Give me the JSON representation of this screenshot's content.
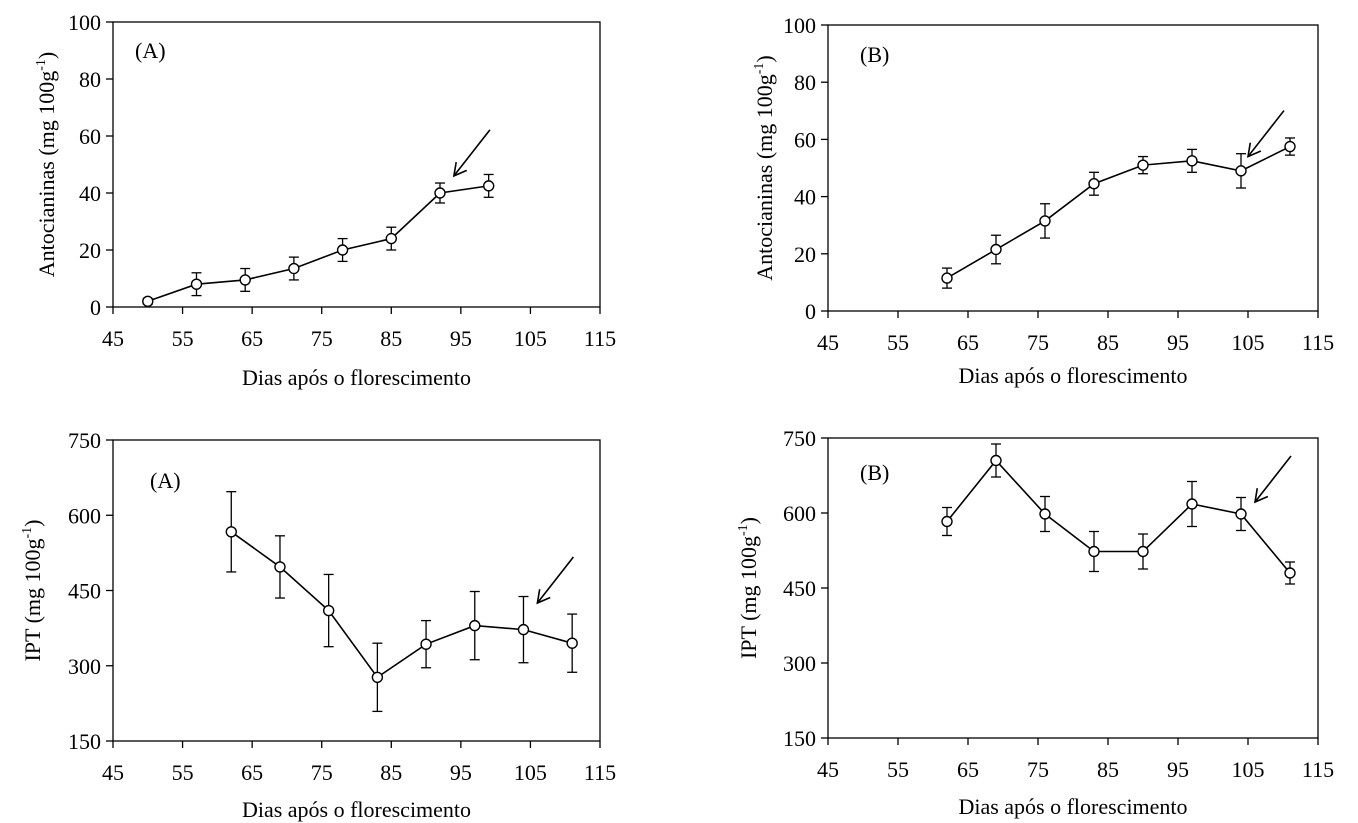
{
  "chart_data": [
    {
      "type": "line",
      "panel_label": "(A)",
      "xlabel": "Dias após o florescimento",
      "ylabel": "Antocianinas (mg 100g",
      "ylabel_sup": "-1",
      "ylabel_close": ")",
      "xlim": [
        45,
        115
      ],
      "ylim": [
        0,
        100
      ],
      "xticks": [
        45,
        55,
        65,
        75,
        85,
        95,
        105,
        115
      ],
      "yticks": [
        0,
        20,
        40,
        60,
        80,
        100
      ],
      "x": [
        50,
        57,
        64,
        71,
        78,
        85,
        92,
        99
      ],
      "y": [
        2,
        8,
        9.5,
        13.5,
        20,
        24,
        40,
        42.5
      ],
      "error": [
        1,
        4,
        4,
        4,
        4,
        4,
        3.5,
        4
      ],
      "arrow_at": [
        94,
        46
      ],
      "grid": false,
      "legend": "none"
    },
    {
      "type": "line",
      "panel_label": "(B)",
      "xlabel": "Dias após o florescimento",
      "ylabel": "Antocianinas (mg 100g",
      "ylabel_sup": "-1",
      "ylabel_close": ")",
      "xlim": [
        45,
        115
      ],
      "ylim": [
        0,
        100
      ],
      "xticks": [
        45,
        55,
        65,
        75,
        85,
        95,
        105,
        115
      ],
      "yticks": [
        0,
        20,
        40,
        60,
        80,
        100
      ],
      "x": [
        62,
        69,
        76,
        83,
        90,
        97,
        104,
        111
      ],
      "y": [
        11.5,
        21.5,
        31.5,
        44.5,
        51,
        52.5,
        49,
        57.5
      ],
      "error": [
        3.5,
        5,
        6,
        4,
        3,
        4,
        6,
        3
      ],
      "arrow_at": [
        105,
        54
      ],
      "grid": false,
      "legend": "none"
    },
    {
      "type": "line",
      "panel_label": "(A)",
      "xlabel": "Dias após o florescimento",
      "ylabel": "IPT (mg 100g",
      "ylabel_sup": "-1",
      "ylabel_close": ")",
      "xlim": [
        45,
        115
      ],
      "ylim": [
        150,
        750
      ],
      "xticks": [
        45,
        55,
        65,
        75,
        85,
        95,
        105,
        115
      ],
      "yticks": [
        150,
        300,
        450,
        600,
        750
      ],
      "x": [
        62,
        69,
        76,
        83,
        90,
        97,
        104,
        111
      ],
      "y": [
        567,
        497,
        410,
        277,
        343,
        380,
        372,
        345
      ],
      "error": [
        80,
        62,
        72,
        68,
        47,
        68,
        66,
        58
      ],
      "arrow_at": [
        106,
        425
      ],
      "grid": false,
      "legend": "none"
    },
    {
      "type": "line",
      "panel_label": "(B)",
      "xlabel": "Dias após o florescimento",
      "ylabel": "IPT (mg 100g",
      "ylabel_sup": "-1",
      "ylabel_close": ")",
      "xlim": [
        45,
        115
      ],
      "ylim": [
        150,
        750
      ],
      "xticks": [
        45,
        55,
        65,
        75,
        85,
        95,
        105,
        115
      ],
      "yticks": [
        150,
        300,
        450,
        600,
        750
      ],
      "x": [
        62,
        69,
        76,
        83,
        90,
        97,
        104,
        111
      ],
      "y": [
        583,
        705,
        598,
        523,
        523,
        618,
        598,
        480
      ],
      "error": [
        28,
        33,
        35,
        40,
        35,
        45,
        33,
        22
      ],
      "arrow_at": [
        106,
        622
      ],
      "grid": false,
      "legend": "none"
    }
  ]
}
